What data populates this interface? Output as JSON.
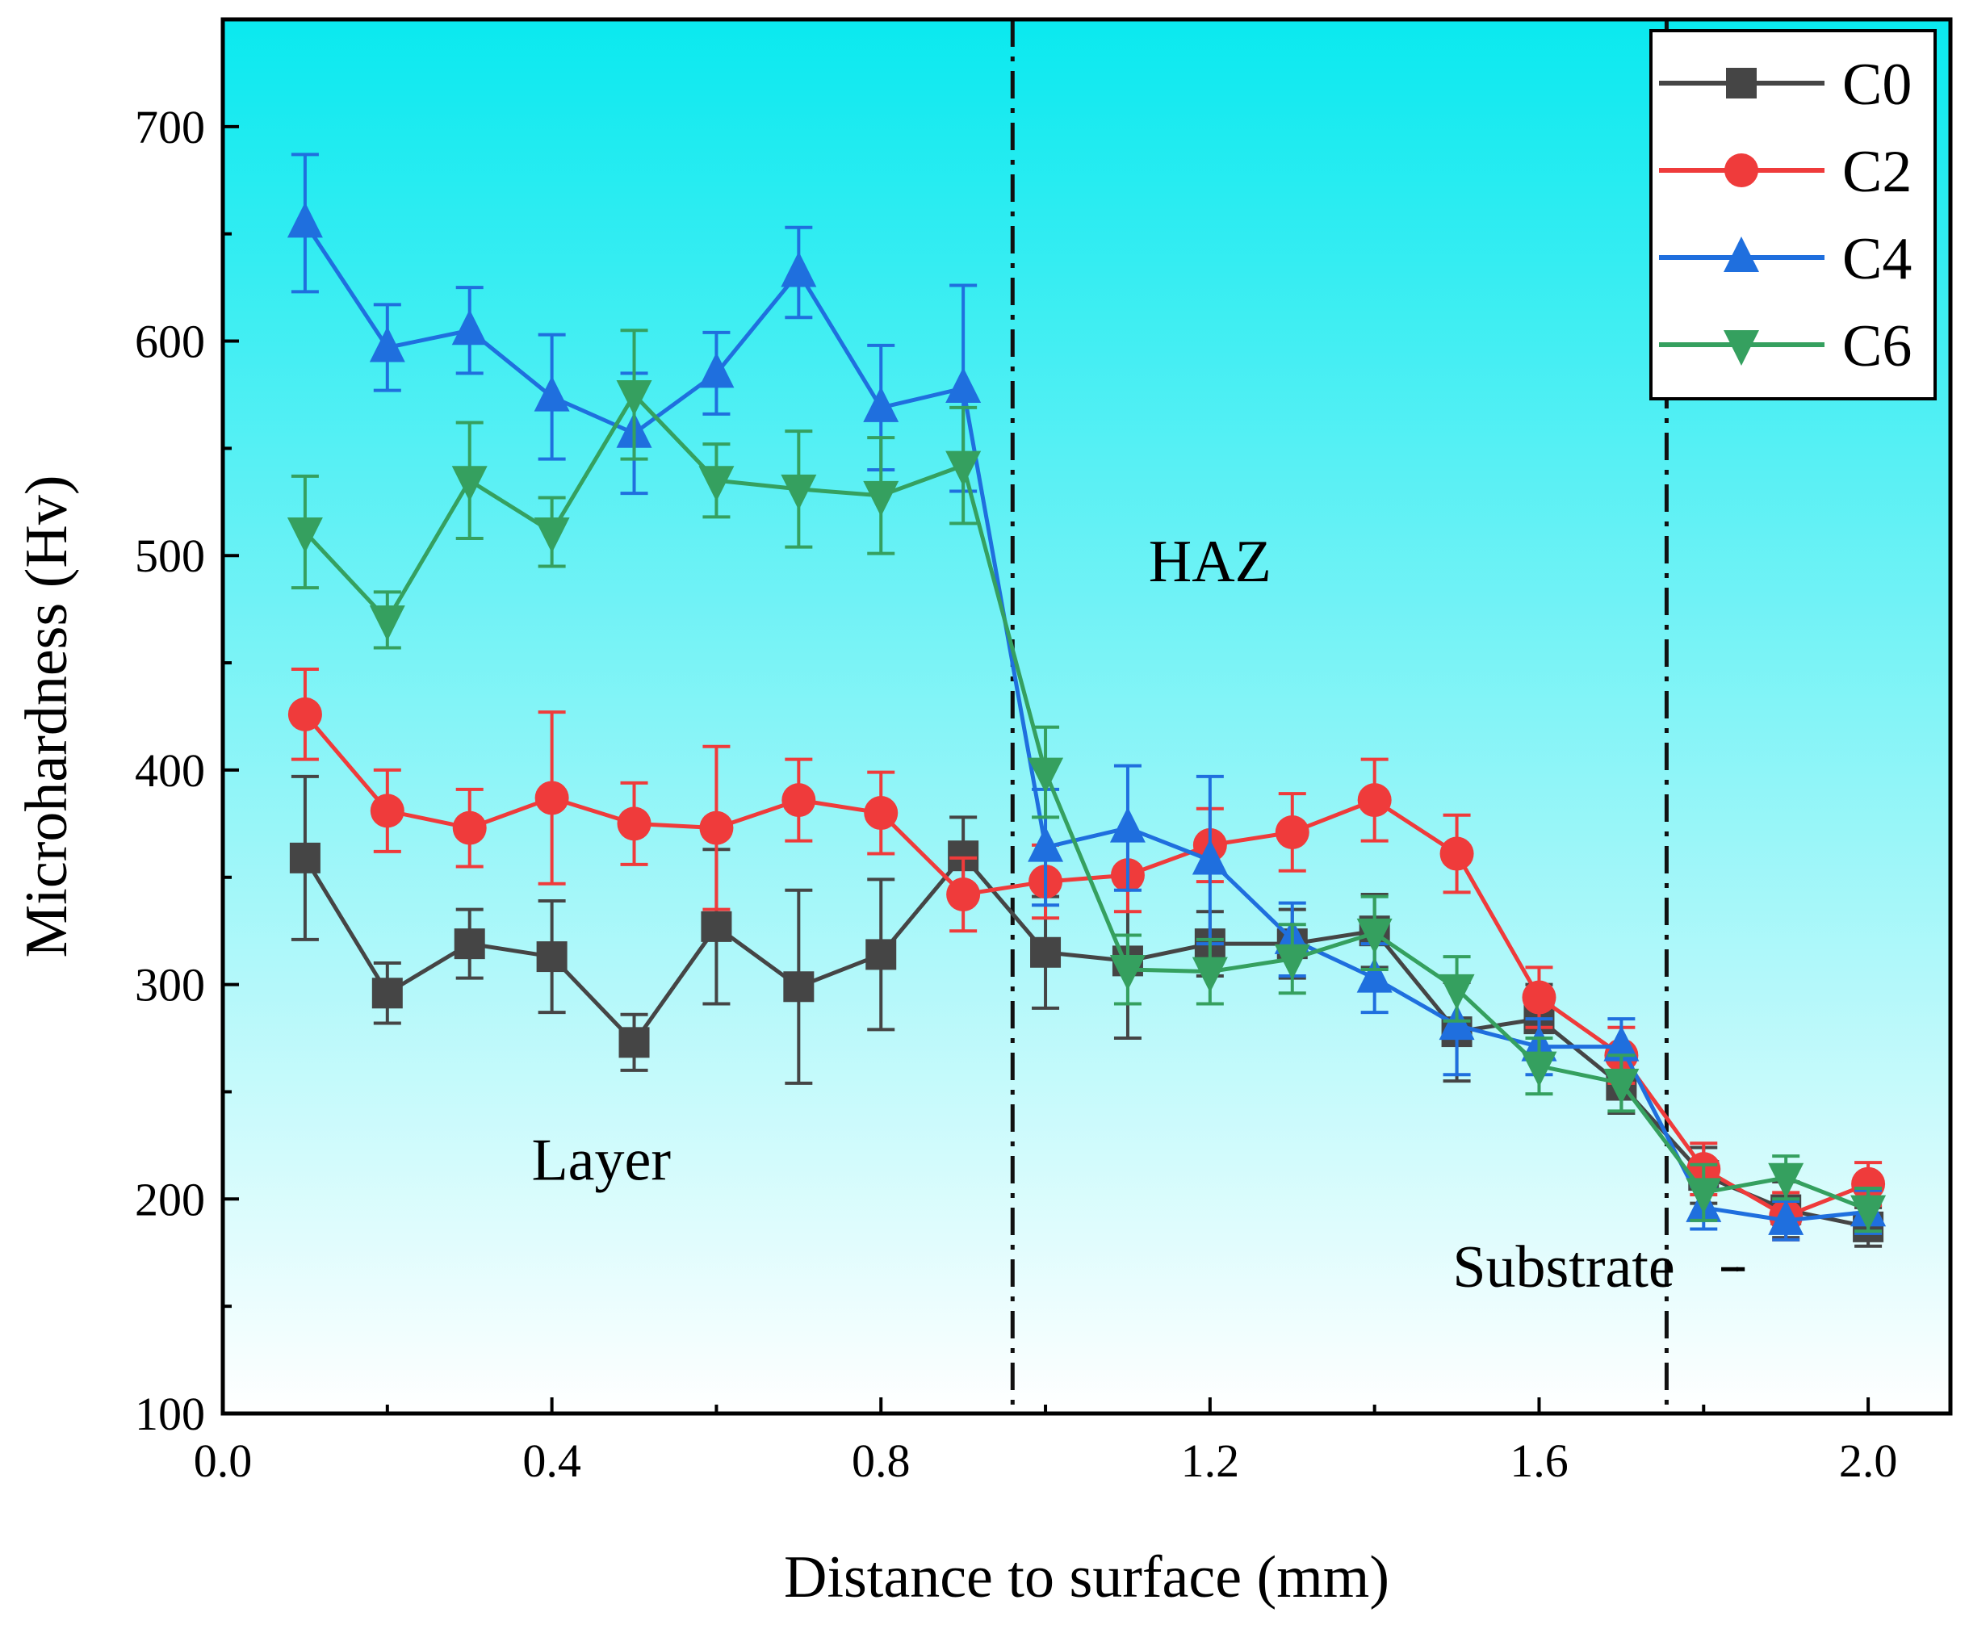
{
  "chart_data": {
    "type": "line",
    "xlabel": "Distance to surface (mm)",
    "ylabel": "Microhardness (Hv)",
    "xlim": [
      0.0,
      2.1
    ],
    "ylim": [
      100,
      750
    ],
    "x_ticks": [
      0.0,
      0.4,
      0.8,
      1.2,
      1.6,
      2.0
    ],
    "x_tick_labels": [
      "0.0",
      "0.4",
      "0.8",
      "1.2",
      "1.6",
      "2.0"
    ],
    "y_ticks": [
      100,
      200,
      300,
      400,
      500,
      600,
      700
    ],
    "y_tick_labels": [
      "100",
      "200",
      "300",
      "400",
      "500",
      "600",
      "700"
    ],
    "grid": false,
    "legend_position": "top-right",
    "background_gradient": {
      "top": "#0AE9EF",
      "bottom": "#FFFFFF"
    },
    "x": [
      0.1,
      0.2,
      0.3,
      0.4,
      0.5,
      0.6,
      0.7,
      0.8,
      0.9,
      1.0,
      1.1,
      1.2,
      1.3,
      1.4,
      1.5,
      1.6,
      1.7,
      1.8,
      1.9,
      2.0
    ],
    "series": [
      {
        "name": "C0",
        "color": "#454545",
        "marker": "square",
        "values": [
          359,
          296,
          319,
          313,
          273,
          327,
          299,
          314,
          360,
          315,
          311,
          319,
          319,
          325,
          278,
          284,
          253,
          211,
          195,
          187
        ],
        "error": [
          38,
          14,
          16,
          26,
          13,
          36,
          45,
          35,
          18,
          26,
          36,
          15,
          16,
          17,
          23,
          16,
          13,
          13,
          13,
          9
        ]
      },
      {
        "name": "C2",
        "color": "#EF3B3B",
        "marker": "circle",
        "values": [
          426,
          381,
          373,
          387,
          375,
          373,
          386,
          380,
          342,
          348,
          351,
          365,
          371,
          386,
          361,
          294,
          267,
          214,
          192,
          207
        ],
        "error": [
          21,
          19,
          18,
          40,
          19,
          38,
          19,
          19,
          17,
          17,
          17,
          17,
          18,
          19,
          18,
          14,
          13,
          12,
          11,
          10
        ]
      },
      {
        "name": "C4",
        "color": "#1F6FDE",
        "marker": "triangle-up",
        "values": [
          655,
          597,
          605,
          574,
          557,
          585,
          632,
          569,
          578,
          364,
          373,
          358,
          321,
          303,
          281,
          271,
          271,
          196,
          190,
          194
        ],
        "error": [
          32,
          20,
          20,
          29,
          28,
          19,
          21,
          29,
          48,
          27,
          29,
          39,
          17,
          16,
          23,
          13,
          13,
          10,
          9,
          10
        ]
      },
      {
        "name": "C6",
        "color": "#35A05F",
        "marker": "triangle-down",
        "values": [
          511,
          470,
          535,
          511,
          575,
          535,
          531,
          528,
          542,
          399,
          307,
          306,
          312,
          324,
          298,
          262,
          254,
          203,
          210,
          195
        ],
        "error": [
          26,
          13,
          27,
          16,
          30,
          17,
          27,
          27,
          27,
          21,
          16,
          15,
          16,
          17,
          15,
          13,
          13,
          13,
          10,
          10
        ]
      }
    ],
    "vertical_lines": [
      {
        "x": 0.96,
        "style": "dash-dot"
      },
      {
        "x": 1.755,
        "style": "dash-dot"
      }
    ],
    "annotations": [
      {
        "text": "Layer",
        "x": 0.46,
        "y": 209
      },
      {
        "text": "HAZ",
        "x": 1.2,
        "y": 488
      },
      {
        "text": "Substrate",
        "x": 1.63,
        "y": 159,
        "arrow_to": 1.85
      }
    ]
  }
}
